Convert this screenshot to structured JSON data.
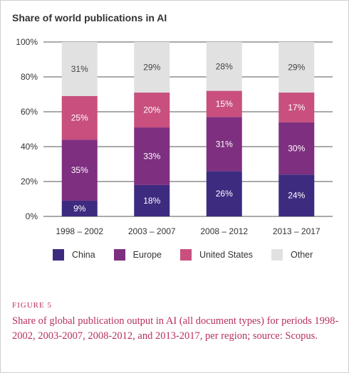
{
  "chart_data": {
    "type": "bar",
    "stacked": true,
    "title": "Share of world publications in AI",
    "categories": [
      "1998 – 2002",
      "2003 – 2007",
      "2008 – 2012",
      "2013 – 2017"
    ],
    "series": [
      {
        "name": "China",
        "values": [
          9,
          18,
          26,
          24
        ],
        "labels": [
          "9%",
          "18%",
          "26%",
          "24%"
        ],
        "color": "#3d2b80"
      },
      {
        "name": "Europe",
        "values": [
          35,
          33,
          31,
          30
        ],
        "labels": [
          "35%",
          "33%",
          "31%",
          "30%"
        ],
        "color": "#7e2f80"
      },
      {
        "name": "United States",
        "values": [
          25,
          20,
          15,
          17
        ],
        "labels": [
          "25%",
          "20%",
          "15%",
          "17%"
        ],
        "color": "#c84f7e"
      },
      {
        "name": "Other",
        "values": [
          31,
          29,
          28,
          29
        ],
        "labels": [
          "31%",
          "29%",
          "28%",
          "29%"
        ],
        "color": "#e2e1e1"
      }
    ],
    "ylim": [
      0,
      100
    ],
    "yticks": [
      0,
      20,
      40,
      60,
      80,
      100
    ],
    "ytick_labels": [
      "0%",
      "20%",
      "40%",
      "60%",
      "80%",
      "100%"
    ],
    "grid": true,
    "legend": "bottom"
  },
  "caption": {
    "figure_label": "FIGURE 5",
    "text": "Share of global publication output in AI (all document types) for periods 1998-2002, 2003-2007, 2008-2012, and 2013-2017, per region; source: Scopus."
  }
}
